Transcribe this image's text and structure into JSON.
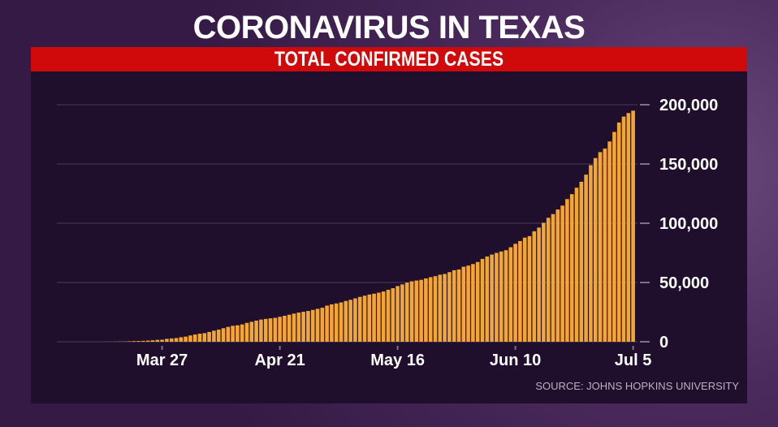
{
  "header": {
    "title": "CORONAVIRUS IN TEXAS",
    "subtitle": "TOTAL CONFIRMED CASES"
  },
  "source": "SOURCE: JOHNS HOPKINS UNIVERSITY",
  "colors": {
    "bar": "#f5a631",
    "panel": "#1f0f2c",
    "banner": "#d00a0a",
    "background": "#4a2a5c"
  },
  "chart_data": {
    "type": "bar",
    "title": "TOTAL CONFIRMED CASES",
    "start_date": "2020-03-15",
    "end_date": "2020-07-05",
    "x_tick_labels": [
      "Mar 27",
      "Apr 21",
      "May 16",
      "Jun 10",
      "Jul 5"
    ],
    "y_tick_labels": [
      "0",
      "50,000",
      "100,000",
      "150,000",
      "200,000"
    ],
    "y_ticks": [
      0,
      50000,
      100000,
      150000,
      200000
    ],
    "ylim": [
      0,
      200000
    ],
    "grid": true,
    "values": [
      57,
      64,
      83,
      173,
      260,
      394,
      566,
      627,
      758,
      955,
      1229,
      1563,
      1731,
      2455,
      2792,
      3147,
      3809,
      4355,
      5330,
      6110,
      6812,
      7276,
      8262,
      9353,
      10230,
      11426,
      12561,
      13484,
      13906,
      14624,
      15907,
      16876,
      17849,
      18704,
      19260,
      19751,
      20196,
      21069,
      21944,
      22806,
      23773,
      24631,
      25297,
      25960,
      26865,
      27798,
      28727,
      30522,
      31548,
      32332,
      33190,
      34422,
      35390,
      36609,
      37860,
      38869,
      39869,
      40555,
      41407,
      42403,
      43851,
      45198,
      46999,
      48396,
      49912,
      50984,
      51673,
      52268,
      53449,
      54509,
      55348,
      56560,
      57230,
      58752,
      60367,
      61006,
      63302,
      64287,
      65593,
      67310,
      69920,
      71935,
      73553,
      74978,
      76163,
      77253,
      79757,
      82658,
      84979,
      87854,
      89108,
      93206,
      96335,
      100399,
      104611,
      107735,
      111601,
      114881,
      120370,
      124533,
      130000,
      135000,
      141000,
      149000,
      155000,
      160000,
      163000,
      169000,
      177000,
      185000,
      190000,
      193000,
      195000
    ]
  }
}
